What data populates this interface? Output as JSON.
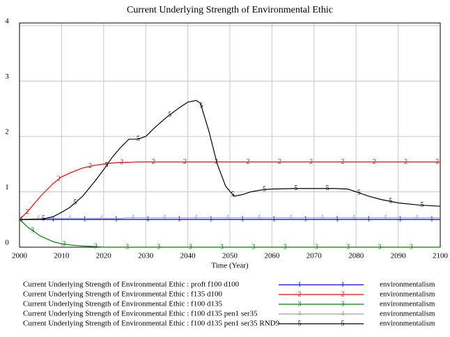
{
  "chart_data": {
    "type": "line",
    "title": "Current Underlying Strength of Environmental Ethic",
    "x_label": "Time (Year)",
    "legend_unit": "environmentalism",
    "xlim": [
      2000,
      2100
    ],
    "xticks": [
      2000,
      2010,
      2020,
      2030,
      2040,
      2050,
      2060,
      2070,
      2080,
      2090,
      2100
    ],
    "ylim": [
      0,
      4.05
    ],
    "yticks": [
      0,
      1,
      2,
      3,
      4
    ],
    "grid": true,
    "legend": "bottom",
    "x": [
      2000,
      2002,
      2005,
      2008,
      2010,
      2012,
      2015,
      2018,
      2020,
      2022,
      2024,
      2026,
      2028,
      2030,
      2032,
      2035,
      2038,
      2040,
      2042,
      2043,
      2045,
      2047,
      2049,
      2051,
      2053,
      2055,
      2058,
      2060,
      2065,
      2070,
      2075,
      2078,
      2080,
      2083,
      2086,
      2090,
      2095,
      2100
    ],
    "series": [
      {
        "name": "Current Underlying Strength of Environmental Ethic : proft f100 d100",
        "marker": "1",
        "color": "#0000ff",
        "values": [
          0.5,
          0.5,
          0.5,
          0.5,
          0.5,
          0.5,
          0.5,
          0.5,
          0.5,
          0.5,
          0.5,
          0.5,
          0.5,
          0.5,
          0.5,
          0.5,
          0.5,
          0.5,
          0.5,
          0.5,
          0.5,
          0.5,
          0.5,
          0.5,
          0.5,
          0.5,
          0.5,
          0.5,
          0.5,
          0.5,
          0.5,
          0.5,
          0.5,
          0.5,
          0.5,
          0.5,
          0.5,
          0.5
        ]
      },
      {
        "name": "Current Underlying Strength of Environmental Ethic : f135 d100",
        "marker": "2",
        "color": "#ff0000",
        "values": [
          0.5,
          0.65,
          0.92,
          1.15,
          1.27,
          1.34,
          1.43,
          1.48,
          1.5,
          1.52,
          1.53,
          1.53,
          1.54,
          1.54,
          1.54,
          1.54,
          1.54,
          1.54,
          1.54,
          1.54,
          1.54,
          1.54,
          1.54,
          1.54,
          1.54,
          1.54,
          1.54,
          1.54,
          1.54,
          1.54,
          1.54,
          1.54,
          1.54,
          1.54,
          1.54,
          1.54,
          1.54,
          1.54
        ]
      },
      {
        "name": "Current Underlying Strength of Environmental Ethic : f100 d135",
        "marker": "3",
        "color": "#008000",
        "values": [
          0.5,
          0.36,
          0.2,
          0.1,
          0.06,
          0.04,
          0.02,
          0.01,
          0,
          0,
          0,
          0,
          0,
          0,
          0,
          0,
          0,
          0,
          0,
          0,
          0,
          0,
          0,
          0,
          0,
          0,
          0,
          0,
          0,
          0,
          0,
          0,
          0,
          0,
          0,
          0,
          0,
          0
        ]
      },
      {
        "name": "Current Underlying Strength of Environmental Ethic : f100 d135 pen1 ser35",
        "marker": "4",
        "color": "#a0a0a0",
        "values": [
          0.5,
          0.51,
          0.52,
          0.52,
          0.52,
          0.52,
          0.52,
          0.52,
          0.52,
          0.52,
          0.52,
          0.53,
          0.53,
          0.53,
          0.53,
          0.53,
          0.53,
          0.53,
          0.53,
          0.53,
          0.53,
          0.53,
          0.53,
          0.53,
          0.53,
          0.53,
          0.53,
          0.53,
          0.53,
          0.53,
          0.53,
          0.53,
          0.53,
          0.53,
          0.53,
          0.53,
          0.53,
          0.53
        ]
      },
      {
        "name": "Current Underlying Strength of Environmental Ethic : f100 d135 pen1 ser35 RND9",
        "marker": "5",
        "color": "#000000",
        "values": [
          0.5,
          0.5,
          0.5,
          0.55,
          0.63,
          0.72,
          0.92,
          1.2,
          1.4,
          1.62,
          1.8,
          1.95,
          1.95,
          2.0,
          2.15,
          2.35,
          2.52,
          2.62,
          2.65,
          2.6,
          2.1,
          1.5,
          1.1,
          0.92,
          0.95,
          1.0,
          1.04,
          1.05,
          1.06,
          1.06,
          1.06,
          1.05,
          1.0,
          0.92,
          0.86,
          0.8,
          0.76,
          0.74
        ]
      }
    ]
  }
}
